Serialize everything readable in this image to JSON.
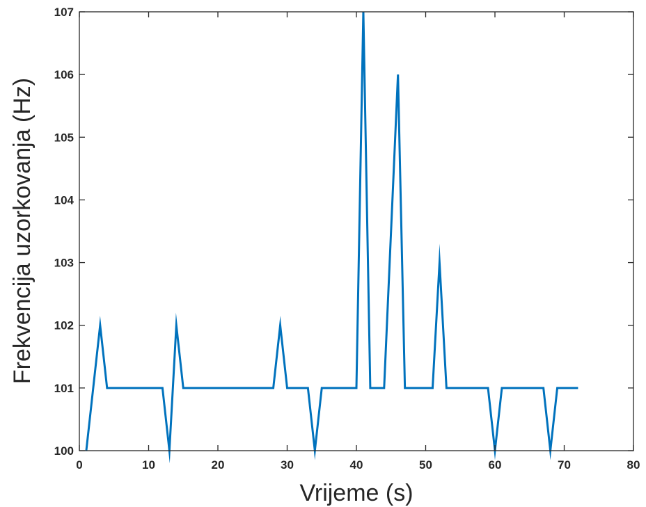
{
  "chart_data": {
    "type": "line",
    "title": "",
    "xlabel": "Vrijeme (s)",
    "ylabel": "Frekvencija uzorkovanja (Hz)",
    "xlim": [
      0,
      80
    ],
    "ylim": [
      100,
      107
    ],
    "xticks": [
      0,
      10,
      20,
      30,
      40,
      50,
      60,
      70,
      80
    ],
    "yticks": [
      100,
      101,
      102,
      103,
      104,
      105,
      106,
      107
    ],
    "grid": false,
    "legend": "none",
    "series": [
      {
        "color": "#0072BD",
        "x": [
          1,
          3,
          4,
          12,
          13,
          14,
          15,
          28,
          29,
          30,
          33,
          34,
          35,
          40,
          41,
          42,
          44,
          46,
          47,
          51,
          52,
          53,
          59,
          60,
          61,
          67,
          68,
          69,
          72
        ],
        "y": [
          100,
          102,
          101,
          101,
          100,
          102,
          101,
          101,
          102,
          101,
          101,
          100,
          101,
          101,
          107,
          101,
          101,
          106,
          101,
          101,
          103,
          101,
          101,
          100,
          101,
          101,
          100,
          101,
          101
        ]
      }
    ]
  }
}
